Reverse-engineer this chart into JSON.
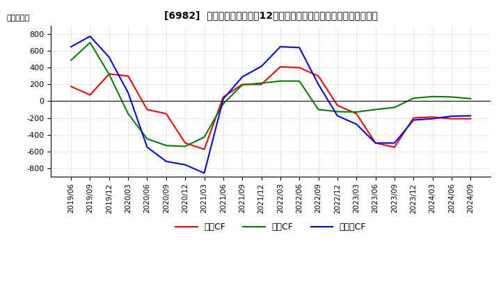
{
  "title": "[6982]  キャッシュフローの12か月移動合計の対前年同期増減額の推移",
  "ylabel": "（百万円）",
  "ylim": [
    -900,
    900
  ],
  "yticks": [
    -800,
    -600,
    -400,
    -200,
    0,
    200,
    400,
    600,
    800
  ],
  "legend_labels": [
    "営業CF",
    "投資CF",
    "フリーCF"
  ],
  "colors": {
    "営業CF": "#ff0000",
    "投資CF": "#008000",
    "フリーCF": "#0000ff"
  },
  "x_labels": [
    "2019/06",
    "2019/09",
    "2019/12",
    "2020/03",
    "2020/06",
    "2020/09",
    "2020/12",
    "2021/03",
    "2021/06",
    "2021/09",
    "2021/12",
    "2022/03",
    "2022/06",
    "2022/09",
    "2022/12",
    "2023/03",
    "2023/06",
    "2023/09",
    "2023/12",
    "2024/03",
    "2024/06",
    "2024/09"
  ],
  "営業CF": [
    175,
    75,
    325,
    300,
    -100,
    -150,
    -500,
    -575,
    50,
    200,
    200,
    410,
    400,
    300,
    -50,
    -150,
    -500,
    -550,
    -200,
    -190,
    -210,
    -210
  ],
  "投資CF": [
    490,
    700,
    320,
    -150,
    -450,
    -530,
    -540,
    -430,
    -30,
    195,
    215,
    240,
    240,
    -100,
    -125,
    -130,
    -100,
    -75,
    35,
    55,
    50,
    30
  ],
  "フリーCF": [
    650,
    775,
    525,
    100,
    -550,
    -720,
    -760,
    -860,
    25,
    290,
    415,
    650,
    640,
    200,
    -175,
    -275,
    -500,
    -500,
    -225,
    -210,
    -180,
    -175
  ]
}
